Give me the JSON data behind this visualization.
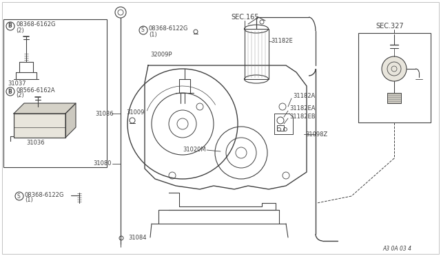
{
  "bg_color": "#f0ece0",
  "line_color": "#404040",
  "diagram_code": "A3 0A 03 4",
  "labels": {
    "B_top": "08368-6162G",
    "B_top2": "(2)",
    "B_bot": "08566-6162A",
    "B_bot2": "(2)",
    "S_top": "08368-6122G",
    "S_top2": "(1)",
    "S_bot": "08368-6122G",
    "S_bot2": "(1)",
    "sec165": "SEC.165",
    "sec327": "SEC.327",
    "p31037": "31037",
    "p31036": "31036",
    "p31086": "31086",
    "p31009": "31009",
    "p32009P": "32009P",
    "p31182E": "31182E",
    "p31182A": "31182A",
    "p31182EA": "31182EA",
    "p31182EB": "31182EB",
    "p31098Z": "31098Z",
    "p31080": "31080",
    "p31020M": "31020M",
    "p31084": "31084"
  },
  "fs": 6.0,
  "fs_sec": 7.0
}
